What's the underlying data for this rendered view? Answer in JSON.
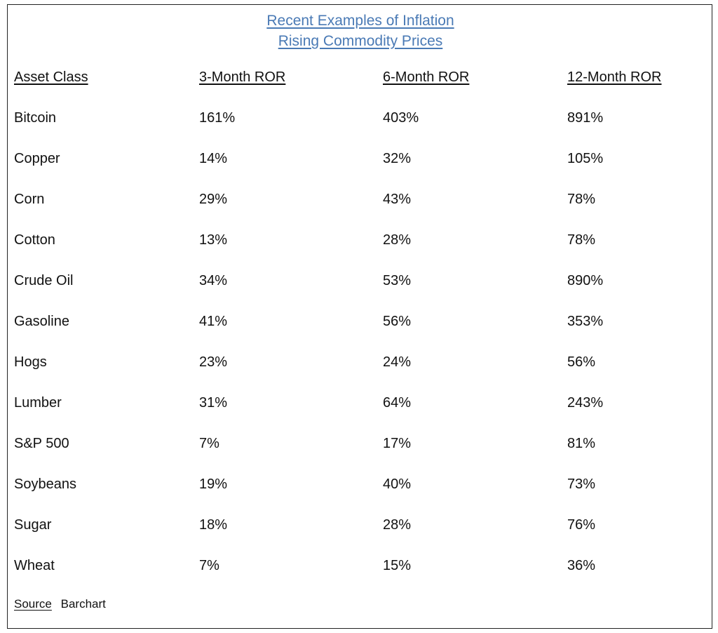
{
  "title": {
    "line1": "Recent Examples of Inflation",
    "line2": "Rising Commodity Prices"
  },
  "table": {
    "headers": [
      "Asset Class",
      "3-Month ROR",
      "6-Month ROR",
      "12-Month ROR"
    ],
    "rows": [
      [
        "Bitcoin",
        "161%",
        "403%",
        "891%"
      ],
      [
        "Copper",
        "14%",
        "32%",
        "105%"
      ],
      [
        "Corn",
        "29%",
        "43%",
        "78%"
      ],
      [
        "Cotton",
        "13%",
        "28%",
        "78%"
      ],
      [
        "Crude Oil",
        "34%",
        "53%",
        "890%"
      ],
      [
        "Gasoline",
        "41%",
        "56%",
        "353%"
      ],
      [
        "Hogs",
        "23%",
        "24%",
        "56%"
      ],
      [
        "Lumber",
        "31%",
        "64%",
        "243%"
      ],
      [
        "S&P 500",
        "7%",
        "17%",
        "81%"
      ],
      [
        "Soybeans",
        "19%",
        "40%",
        "73%"
      ],
      [
        "Sugar",
        "18%",
        "28%",
        "76%"
      ],
      [
        "Wheat",
        "7%",
        "15%",
        "36%"
      ]
    ]
  },
  "source": {
    "label": "Source",
    "value": "Barchart"
  },
  "colors": {
    "title": "#4a7ab5",
    "text": "#111111",
    "border": "#222222"
  }
}
